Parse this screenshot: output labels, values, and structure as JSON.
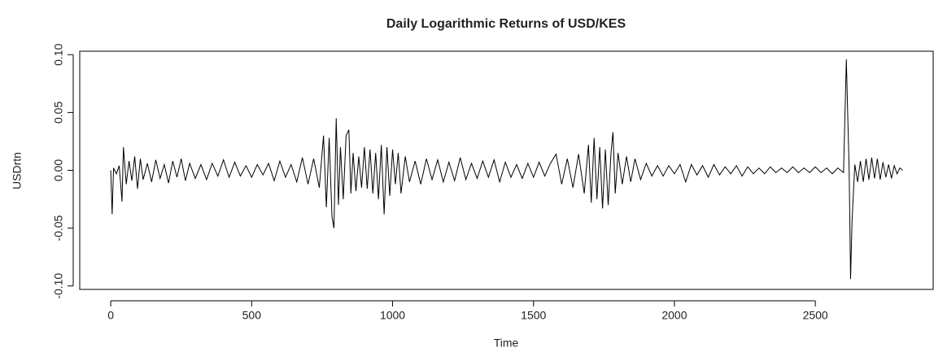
{
  "chart_data": {
    "type": "line",
    "title": "Daily Logarithmic Returns of USD/KES",
    "x_label": "Time",
    "y_label": "USDrtn",
    "color": "#000000",
    "xlim": [
      -110,
      2921
    ],
    "ylim": [
      -0.103,
      0.103
    ],
    "xticks": [
      0,
      500,
      1000,
      1500,
      2000,
      2500
    ],
    "yticks": [
      {
        "value": -0.1,
        "label": "-0.10"
      },
      -0.05,
      {
        "value": 0,
        "label": "0.00"
      },
      0.05,
      {
        "value": 0.1,
        "label": "0.10"
      }
    ],
    "x": [
      0,
      5,
      10,
      20,
      30,
      40,
      45,
      55,
      65,
      75,
      85,
      95,
      105,
      115,
      130,
      145,
      160,
      175,
      190,
      205,
      220,
      235,
      250,
      265,
      280,
      300,
      320,
      340,
      360,
      380,
      400,
      420,
      440,
      460,
      480,
      500,
      520,
      540,
      560,
      580,
      600,
      620,
      640,
      660,
      680,
      700,
      720,
      740,
      755,
      765,
      775,
      785,
      792,
      800,
      808,
      815,
      825,
      835,
      845,
      852,
      860,
      870,
      880,
      890,
      900,
      910,
      920,
      930,
      940,
      950,
      960,
      970,
      980,
      990,
      1000,
      1010,
      1020,
      1030,
      1045,
      1060,
      1080,
      1100,
      1120,
      1140,
      1160,
      1180,
      1200,
      1220,
      1240,
      1260,
      1280,
      1300,
      1320,
      1340,
      1360,
      1380,
      1400,
      1420,
      1440,
      1460,
      1480,
      1500,
      1520,
      1540,
      1560,
      1580,
      1600,
      1620,
      1640,
      1660,
      1680,
      1695,
      1705,
      1715,
      1725,
      1735,
      1745,
      1755,
      1765,
      1775,
      1782,
      1790,
      1800,
      1815,
      1830,
      1845,
      1860,
      1880,
      1900,
      1920,
      1940,
      1960,
      1980,
      2000,
      2020,
      2040,
      2060,
      2080,
      2100,
      2120,
      2140,
      2160,
      2180,
      2200,
      2220,
      2240,
      2260,
      2280,
      2300,
      2320,
      2340,
      2360,
      2380,
      2400,
      2420,
      2440,
      2460,
      2480,
      2500,
      2520,
      2540,
      2560,
      2580,
      2600,
      2610,
      2615,
      2620,
      2625,
      2630,
      2640,
      2650,
      2660,
      2670,
      2680,
      2690,
      2700,
      2710,
      2720,
      2730,
      2740,
      2750,
      2760,
      2770,
      2780,
      2790,
      2800,
      2810
    ],
    "values": [
      0,
      -0.038,
      0.002,
      -0.003,
      0.004,
      -0.027,
      0.02,
      -0.012,
      0.008,
      -0.009,
      0.012,
      -0.016,
      0.01,
      -0.008,
      0.006,
      -0.01,
      0.009,
      -0.007,
      0.005,
      -0.011,
      0.008,
      -0.006,
      0.01,
      -0.009,
      0.006,
      -0.007,
      0.005,
      -0.008,
      0.006,
      -0.005,
      0.009,
      -0.006,
      0.007,
      -0.005,
      0.004,
      -0.006,
      0.005,
      -0.004,
      0.006,
      -0.009,
      0.008,
      -0.006,
      0.005,
      -0.01,
      0.011,
      -0.012,
      0.01,
      -0.015,
      0.03,
      -0.032,
      0.028,
      -0.04,
      -0.05,
      0.045,
      -0.03,
      0.02,
      -0.025,
      0.03,
      0.035,
      -0.02,
      0.015,
      -0.018,
      0.012,
      -0.015,
      0.02,
      -0.016,
      0.018,
      -0.02,
      0.015,
      -0.025,
      0.022,
      -0.038,
      0.02,
      -0.022,
      0.018,
      -0.012,
      0.015,
      -0.02,
      0.012,
      -0.01,
      0.008,
      -0.012,
      0.01,
      -0.008,
      0.009,
      -0.01,
      0.007,
      -0.009,
      0.011,
      -0.008,
      0.006,
      -0.007,
      0.008,
      -0.006,
      0.009,
      -0.01,
      0.007,
      -0.006,
      0.005,
      -0.007,
      0.006,
      -0.006,
      0.007,
      -0.005,
      0.006,
      0.014,
      -0.012,
      0.01,
      -0.015,
      0.014,
      -0.02,
      0.022,
      -0.028,
      0.028,
      -0.025,
      0.02,
      -0.033,
      0.018,
      -0.03,
      0.015,
      0.033,
      -0.02,
      0.015,
      -0.012,
      0.012,
      -0.01,
      0.01,
      -0.008,
      0.006,
      -0.005,
      0.004,
      -0.005,
      0.004,
      -0.003,
      0.005,
      -0.01,
      0.005,
      -0.004,
      0.004,
      -0.006,
      0.005,
      -0.004,
      0.003,
      -0.003,
      0.004,
      -0.005,
      0.003,
      -0.003,
      0.002,
      -0.003,
      0.003,
      -0.002,
      0.002,
      -0.002,
      0.003,
      -0.002,
      0.002,
      -0.002,
      0.003,
      -0.002,
      0.002,
      -0.003,
      0.002,
      -0.002,
      0.096,
      0.047,
      0,
      -0.094,
      -0.045,
      0.005,
      -0.01,
      0.008,
      -0.01,
      0.01,
      -0.008,
      0.011,
      -0.007,
      0.01,
      -0.008,
      0.007,
      -0.006,
      0.005,
      -0.007,
      0.004,
      -0.003,
      0.002,
      0
    ]
  }
}
